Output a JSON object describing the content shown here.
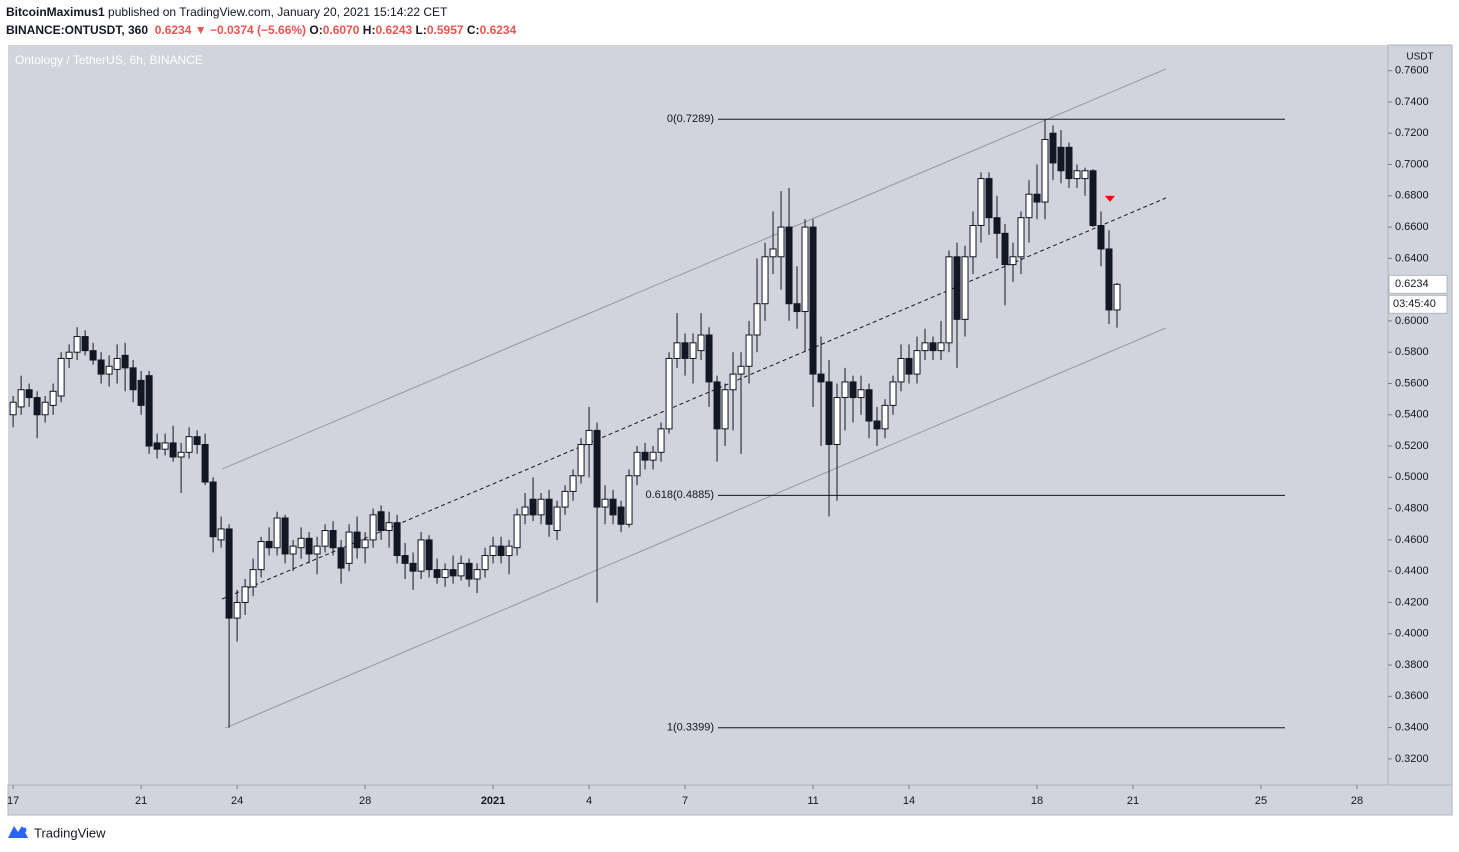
{
  "header": {
    "author": "BitcoinMaximus1",
    "published": "published on TradingView.com, January 20, 2021 15:14:22 CET",
    "symbol": "BINANCE:ONTUSDT, 360",
    "last": "0.6234",
    "change": "−0.0374 (−5.66%)",
    "o_label": "O:",
    "o": "0.6070",
    "h_label": "H:",
    "h": "0.6243",
    "l_label": "L:",
    "l": "0.5957",
    "c_label": "C:",
    "c": "0.6234"
  },
  "footer": {
    "brand": "TradingView"
  },
  "chart_data": {
    "type": "candlestick",
    "title": "Ontology / TetherUS, 6h, BINANCE",
    "y_axis_label": "USDT",
    "up_color": "#ffffff",
    "down_color": "#131722",
    "grid": false,
    "x": [
      0,
      0.25,
      0.5,
      0.75,
      1,
      1.25,
      1.5,
      1.75,
      2,
      2.25,
      2.5,
      2.75,
      3,
      3.25,
      3.5,
      3.75,
      4,
      4.25,
      4.5,
      4.75,
      5,
      5.25,
      5.5,
      5.75,
      6,
      6.25,
      6.5,
      6.75,
      7,
      7.25,
      7.5,
      7.75,
      8,
      8.25,
      8.5,
      8.75,
      9,
      9.25,
      9.5,
      9.75,
      10,
      10.25,
      10.5,
      10.75,
      11,
      11.25,
      11.5,
      11.75,
      12,
      12.25,
      12.5,
      12.75,
      13,
      13.25,
      13.5,
      13.75,
      14,
      14.25,
      14.5,
      14.75,
      15,
      15.25,
      15.5,
      15.75,
      16,
      16.25,
      16.5,
      16.75,
      17,
      17.25,
      17.5,
      17.75,
      18,
      18.25,
      18.5,
      18.75,
      19,
      19.25,
      19.5,
      19.75,
      20,
      20.25,
      20.5,
      20.75,
      21,
      21.25,
      21.5,
      21.75,
      22,
      22.25,
      22.5,
      22.75,
      23,
      23.25,
      23.5,
      23.75,
      24,
      24.25,
      24.5,
      24.75,
      25,
      25.25,
      25.5,
      25.75,
      26,
      26.25,
      26.5,
      26.75,
      27,
      27.25,
      27.5,
      27.75,
      28,
      28.25,
      28.5,
      28.75,
      29,
      29.25,
      29.5,
      29.75,
      30,
      30.25,
      30.5,
      30.75,
      31,
      31.25,
      31.5,
      31.75,
      32,
      32.25,
      32.5,
      32.75,
      33,
      33.25,
      33.5,
      33.75,
      34,
      34.25,
      34.5
    ],
    "ohlc": [
      [
        0.54,
        0.552,
        0.532,
        0.548
      ],
      [
        0.545,
        0.565,
        0.54,
        0.556
      ],
      [
        0.556,
        0.56,
        0.545,
        0.551
      ],
      [
        0.551,
        0.555,
        0.525,
        0.54
      ],
      [
        0.54,
        0.552,
        0.535,
        0.548
      ],
      [
        0.546,
        0.56,
        0.54,
        0.555
      ],
      [
        0.552,
        0.58,
        0.548,
        0.576
      ],
      [
        0.576,
        0.585,
        0.57,
        0.58
      ],
      [
        0.58,
        0.596,
        0.575,
        0.59
      ],
      [
        0.59,
        0.594,
        0.578,
        0.581
      ],
      [
        0.581,
        0.586,
        0.572,
        0.575
      ],
      [
        0.575,
        0.58,
        0.56,
        0.566
      ],
      [
        0.566,
        0.578,
        0.558,
        0.571
      ],
      [
        0.569,
        0.585,
        0.56,
        0.576
      ],
      [
        0.578,
        0.586,
        0.555,
        0.57
      ],
      [
        0.57,
        0.575,
        0.548,
        0.556
      ],
      [
        0.562,
        0.568,
        0.54,
        0.546
      ],
      [
        0.565,
        0.568,
        0.515,
        0.52
      ],
      [
        0.522,
        0.528,
        0.512,
        0.518
      ],
      [
        0.518,
        0.528,
        0.514,
        0.522
      ],
      [
        0.522,
        0.533,
        0.51,
        0.513
      ],
      [
        0.513,
        0.522,
        0.49,
        0.516
      ],
      [
        0.516,
        0.532,
        0.512,
        0.526
      ],
      [
        0.526,
        0.53,
        0.515,
        0.521
      ],
      [
        0.521,
        0.528,
        0.495,
        0.497
      ],
      [
        0.497,
        0.5,
        0.452,
        0.462
      ],
      [
        0.46,
        0.475,
        0.455,
        0.467
      ],
      [
        0.467,
        0.47,
        0.34,
        0.41
      ],
      [
        0.41,
        0.428,
        0.395,
        0.42
      ],
      [
        0.42,
        0.435,
        0.412,
        0.43
      ],
      [
        0.43,
        0.448,
        0.424,
        0.441
      ],
      [
        0.441,
        0.462,
        0.436,
        0.459
      ],
      [
        0.459,
        0.468,
        0.45,
        0.455
      ],
      [
        0.455,
        0.478,
        0.45,
        0.474
      ],
      [
        0.474,
        0.476,
        0.445,
        0.451
      ],
      [
        0.451,
        0.46,
        0.44,
        0.456
      ],
      [
        0.455,
        0.468,
        0.448,
        0.461
      ],
      [
        0.461,
        0.465,
        0.445,
        0.451
      ],
      [
        0.451,
        0.462,
        0.438,
        0.456
      ],
      [
        0.456,
        0.47,
        0.452,
        0.466
      ],
      [
        0.466,
        0.472,
        0.45,
        0.455
      ],
      [
        0.455,
        0.46,
        0.432,
        0.442
      ],
      [
        0.445,
        0.47,
        0.44,
        0.465
      ],
      [
        0.465,
        0.475,
        0.448,
        0.455
      ],
      [
        0.455,
        0.465,
        0.445,
        0.46
      ],
      [
        0.46,
        0.48,
        0.455,
        0.476
      ],
      [
        0.478,
        0.482,
        0.46,
        0.466
      ],
      [
        0.466,
        0.478,
        0.455,
        0.471
      ],
      [
        0.471,
        0.476,
        0.445,
        0.45
      ],
      [
        0.45,
        0.458,
        0.435,
        0.445
      ],
      [
        0.445,
        0.452,
        0.428,
        0.44
      ],
      [
        0.44,
        0.465,
        0.435,
        0.46
      ],
      [
        0.46,
        0.463,
        0.436,
        0.441
      ],
      [
        0.441,
        0.448,
        0.432,
        0.436
      ],
      [
        0.436,
        0.445,
        0.43,
        0.441
      ],
      [
        0.441,
        0.45,
        0.432,
        0.437
      ],
      [
        0.437,
        0.45,
        0.434,
        0.445
      ],
      [
        0.445,
        0.448,
        0.43,
        0.435
      ],
      [
        0.435,
        0.445,
        0.426,
        0.441
      ],
      [
        0.441,
        0.455,
        0.436,
        0.45
      ],
      [
        0.45,
        0.462,
        0.445,
        0.456
      ],
      [
        0.456,
        0.462,
        0.445,
        0.45
      ],
      [
        0.45,
        0.46,
        0.438,
        0.456
      ],
      [
        0.455,
        0.48,
        0.45,
        0.476
      ],
      [
        0.476,
        0.49,
        0.47,
        0.481
      ],
      [
        0.486,
        0.5,
        0.472,
        0.476
      ],
      [
        0.476,
        0.49,
        0.47,
        0.486
      ],
      [
        0.486,
        0.492,
        0.462,
        0.47
      ],
      [
        0.466,
        0.485,
        0.46,
        0.481
      ],
      [
        0.481,
        0.495,
        0.476,
        0.491
      ],
      [
        0.491,
        0.505,
        0.485,
        0.501
      ],
      [
        0.501,
        0.525,
        0.496,
        0.521
      ],
      [
        0.521,
        0.545,
        0.5,
        0.53
      ],
      [
        0.53,
        0.535,
        0.42,
        0.481
      ],
      [
        0.481,
        0.495,
        0.47,
        0.486
      ],
      [
        0.486,
        0.492,
        0.47,
        0.476
      ],
      [
        0.481,
        0.485,
        0.465,
        0.47
      ],
      [
        0.47,
        0.505,
        0.468,
        0.501
      ],
      [
        0.501,
        0.52,
        0.495,
        0.516
      ],
      [
        0.516,
        0.522,
        0.505,
        0.511
      ],
      [
        0.511,
        0.52,
        0.505,
        0.516
      ],
      [
        0.516,
        0.535,
        0.51,
        0.531
      ],
      [
        0.531,
        0.58,
        0.528,
        0.576
      ],
      [
        0.576,
        0.605,
        0.57,
        0.586
      ],
      [
        0.586,
        0.592,
        0.565,
        0.576
      ],
      [
        0.576,
        0.592,
        0.56,
        0.586
      ],
      [
        0.581,
        0.605,
        0.575,
        0.591
      ],
      [
        0.591,
        0.596,
        0.545,
        0.561
      ],
      [
        0.561,
        0.565,
        0.51,
        0.531
      ],
      [
        0.531,
        0.56,
        0.52,
        0.556
      ],
      [
        0.556,
        0.58,
        0.53,
        0.566
      ],
      [
        0.566,
        0.58,
        0.515,
        0.571
      ],
      [
        0.571,
        0.6,
        0.56,
        0.591
      ],
      [
        0.591,
        0.64,
        0.58,
        0.611
      ],
      [
        0.611,
        0.65,
        0.6,
        0.641
      ],
      [
        0.641,
        0.67,
        0.63,
        0.646
      ],
      [
        0.641,
        0.683,
        0.62,
        0.66
      ],
      [
        0.66,
        0.685,
        0.6,
        0.611
      ],
      [
        0.611,
        0.635,
        0.595,
        0.606
      ],
      [
        0.606,
        0.665,
        0.58,
        0.66
      ],
      [
        0.66,
        0.665,
        0.545,
        0.566
      ],
      [
        0.566,
        0.59,
        0.52,
        0.561
      ],
      [
        0.561,
        0.575,
        0.475,
        0.521
      ],
      [
        0.521,
        0.56,
        0.485,
        0.551
      ],
      [
        0.551,
        0.57,
        0.53,
        0.561
      ],
      [
        0.561,
        0.565,
        0.535,
        0.551
      ],
      [
        0.551,
        0.565,
        0.54,
        0.556
      ],
      [
        0.556,
        0.56,
        0.525,
        0.536
      ],
      [
        0.536,
        0.545,
        0.52,
        0.531
      ],
      [
        0.531,
        0.55,
        0.525,
        0.546
      ],
      [
        0.546,
        0.565,
        0.54,
        0.561
      ],
      [
        0.561,
        0.585,
        0.555,
        0.576
      ],
      [
        0.576,
        0.585,
        0.56,
        0.566
      ],
      [
        0.566,
        0.59,
        0.56,
        0.581
      ],
      [
        0.581,
        0.595,
        0.575,
        0.586
      ],
      [
        0.586,
        0.59,
        0.575,
        0.581
      ],
      [
        0.581,
        0.6,
        0.575,
        0.586
      ],
      [
        0.586,
        0.645,
        0.58,
        0.641
      ],
      [
        0.641,
        0.65,
        0.57,
        0.601
      ],
      [
        0.601,
        0.648,
        0.59,
        0.641
      ],
      [
        0.641,
        0.67,
        0.63,
        0.661
      ],
      [
        0.661,
        0.695,
        0.65,
        0.691
      ],
      [
        0.691,
        0.695,
        0.655,
        0.666
      ],
      [
        0.666,
        0.68,
        0.64,
        0.656
      ],
      [
        0.656,
        0.662,
        0.61,
        0.636
      ],
      [
        0.636,
        0.65,
        0.625,
        0.641
      ],
      [
        0.641,
        0.67,
        0.63,
        0.666
      ],
      [
        0.666,
        0.69,
        0.65,
        0.681
      ],
      [
        0.681,
        0.7,
        0.665,
        0.676
      ],
      [
        0.676,
        0.729,
        0.665,
        0.716
      ],
      [
        0.72,
        0.725,
        0.69,
        0.701
      ],
      [
        0.711,
        0.722,
        0.688,
        0.696
      ],
      [
        0.711,
        0.714,
        0.685,
        0.691
      ],
      [
        0.691,
        0.7,
        0.685,
        0.696
      ],
      [
        0.691,
        0.698,
        0.68,
        0.696
      ],
      [
        0.696,
        0.697,
        0.66,
        0.661
      ],
      [
        0.661,
        0.67,
        0.635,
        0.646
      ],
      [
        0.646,
        0.658,
        0.598,
        0.607
      ],
      [
        0.607,
        0.6243,
        0.5957,
        0.6234
      ]
    ],
    "xlim": [
      -0.16,
      42.97
    ],
    "xticks": [
      {
        "value": 0,
        "label": "17"
      },
      {
        "value": 4,
        "label": "21"
      },
      {
        "value": 7,
        "label": "24"
      },
      {
        "value": 11,
        "label": "28"
      },
      {
        "value": 15,
        "label": "2021"
      },
      {
        "value": 18,
        "label": "4"
      },
      {
        "value": 21,
        "label": "7"
      },
      {
        "value": 25,
        "label": "11"
      },
      {
        "value": 28,
        "label": "14"
      },
      {
        "value": 32,
        "label": "18"
      },
      {
        "value": 35,
        "label": "21"
      },
      {
        "value": 39,
        "label": "25"
      },
      {
        "value": 42,
        "label": "28"
      }
    ],
    "ylim": [
      0.3033,
      0.7764
    ],
    "yticks": [
      {
        "value": 0.32,
        "label": "0.3200"
      },
      {
        "value": 0.34,
        "label": "0.3400"
      },
      {
        "value": 0.36,
        "label": "0.3600"
      },
      {
        "value": 0.38,
        "label": "0.3800"
      },
      {
        "value": 0.4,
        "label": "0.4000"
      },
      {
        "value": 0.42,
        "label": "0.4200"
      },
      {
        "value": 0.44,
        "label": "0.4400"
      },
      {
        "value": 0.46,
        "label": "0.4600"
      },
      {
        "value": 0.48,
        "label": "0.4800"
      },
      {
        "value": 0.5,
        "label": "0.5000"
      },
      {
        "value": 0.52,
        "label": "0.5200"
      },
      {
        "value": 0.54,
        "label": "0.5400"
      },
      {
        "value": 0.56,
        "label": "0.5600"
      },
      {
        "value": 0.58,
        "label": "0.5800"
      },
      {
        "value": 0.6,
        "label": "0.6000"
      },
      {
        "value": 0.62,
        "label": "0.6200"
      },
      {
        "value": 0.64,
        "label": "0.6400"
      },
      {
        "value": 0.66,
        "label": "0.6600"
      },
      {
        "value": 0.68,
        "label": "0.6800"
      },
      {
        "value": 0.7,
        "label": "0.7000"
      },
      {
        "value": 0.72,
        "label": "0.7200"
      },
      {
        "value": 0.74,
        "label": "0.7400"
      },
      {
        "value": 0.76,
        "label": "0.7600"
      }
    ],
    "fib_levels": [
      {
        "value": 0.7289,
        "label": "0(0.7289)"
      },
      {
        "value": 0.4885,
        "label": "0.618(0.4885)"
      },
      {
        "value": 0.3399,
        "label": "1(0.3399)"
      }
    ],
    "fib_x": [
      22.03,
      39.75
    ],
    "channel": [
      {
        "x": [
          6.53,
          36.03
        ],
        "y": [
          0.5053,
          0.7611
        ],
        "style": "solid"
      },
      {
        "x": [
          6.63,
          36.03
        ],
        "y": [
          0.3397,
          0.5955
        ],
        "style": "solid"
      },
      {
        "x": [
          6.53,
          36.03
        ],
        "y": [
          0.4222,
          0.6786
        ],
        "style": "dashed"
      }
    ],
    "marker": {
      "x": 34.28,
      "y": 0.678,
      "color": "#ff0000"
    },
    "last_price_label": "0.6234",
    "countdown": "03:45:40"
  }
}
